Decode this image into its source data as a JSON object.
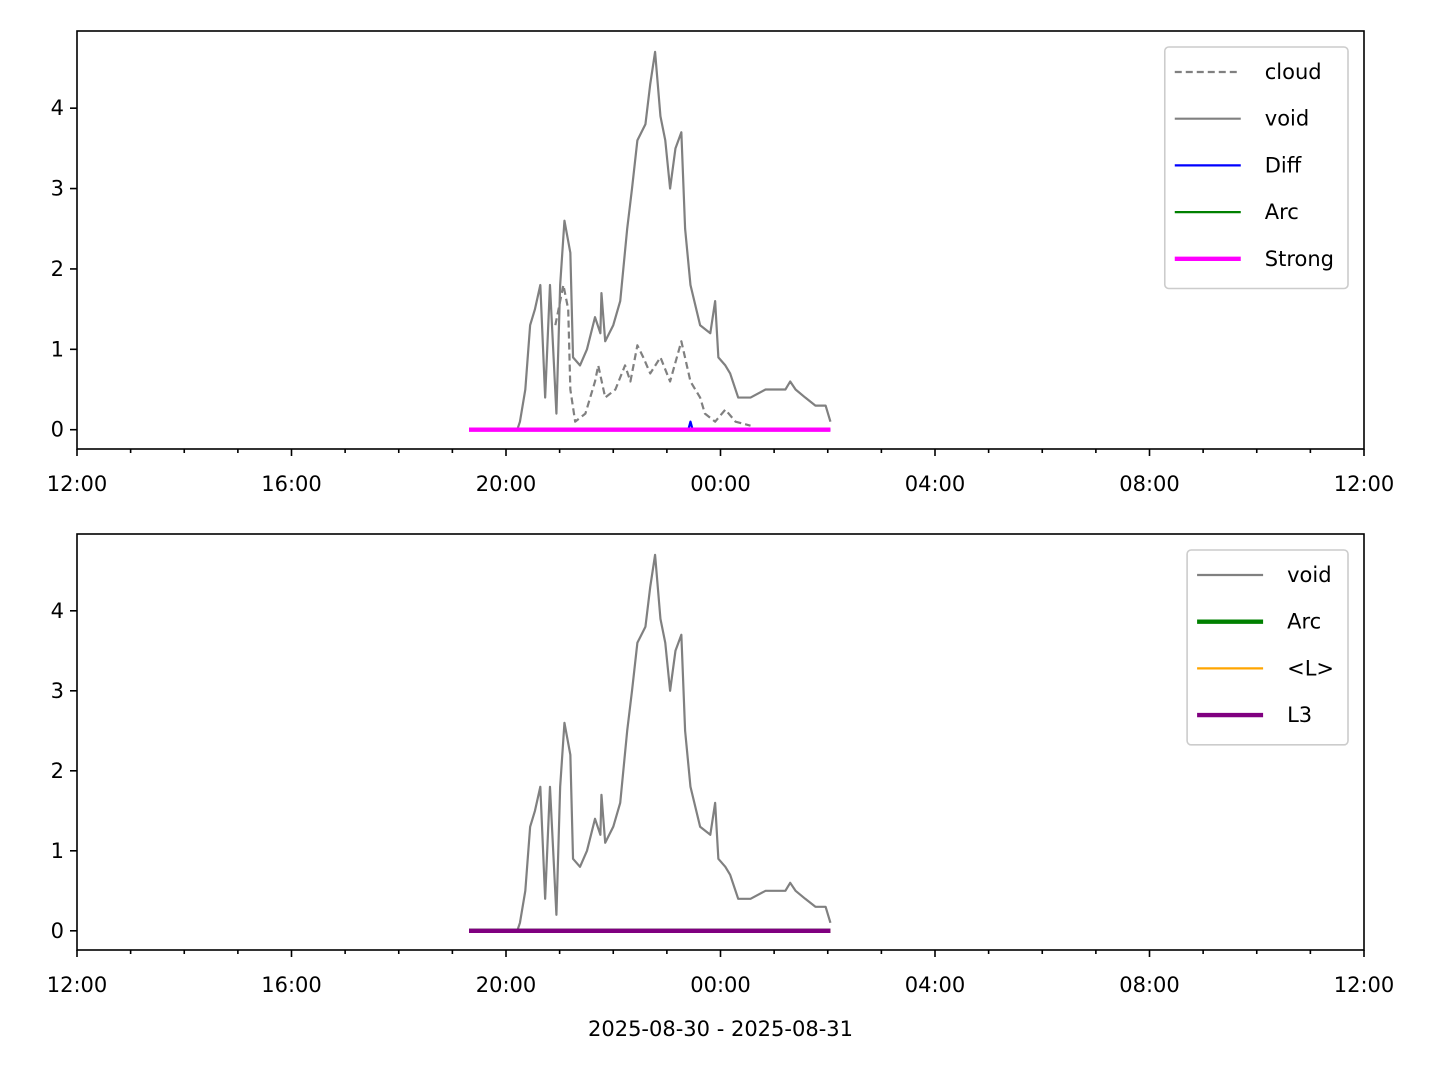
{
  "chart_data": [
    {
      "type": "line",
      "xlim": [
        12,
        36
      ],
      "ylim": [
        -0.24,
        4.96
      ],
      "xticks": [
        {
          "value": 12,
          "label": "12:00"
        },
        {
          "value": 16,
          "label": "16:00"
        },
        {
          "value": 20,
          "label": "20:00"
        },
        {
          "value": 24,
          "label": "00:00"
        },
        {
          "value": 28,
          "label": "04:00"
        },
        {
          "value": 32,
          "label": "08:00"
        },
        {
          "value": 36,
          "label": "12:00"
        }
      ],
      "xminorticks": [
        13,
        14,
        15,
        17,
        18,
        19,
        21,
        22,
        23,
        25,
        26,
        27,
        29,
        30,
        31,
        33,
        34,
        35
      ],
      "yticks": [
        0,
        1,
        2,
        3,
        4
      ],
      "legend": "upper right",
      "series": [
        {
          "name": "cloud",
          "color": "#808080",
          "style": "dashed",
          "linewidth": 1,
          "x": [
            20.92,
            21.07,
            21.16,
            21.2,
            21.29,
            21.48,
            21.66,
            21.72,
            21.85,
            22.04,
            22.22,
            22.32,
            22.45,
            22.56,
            22.69,
            22.88,
            23.06,
            23.27,
            23.44,
            23.62,
            23.71,
            23.9,
            24.09,
            24.28,
            24.56
          ],
          "values": [
            1.3,
            1.8,
            1.5,
            0.5,
            0.1,
            0.2,
            0.6,
            0.8,
            0.4,
            0.5,
            0.8,
            0.6,
            1.05,
            0.9,
            0.7,
            0.9,
            0.6,
            1.1,
            0.6,
            0.4,
            0.2,
            0.1,
            0.25,
            0.1,
            0.05
          ]
        },
        {
          "name": "void",
          "color": "#808080",
          "style": "solid",
          "linewidth": 1,
          "x": [
            19.31,
            20.21,
            20.26,
            20.36,
            20.45,
            20.54,
            20.64,
            20.73,
            20.82,
            20.94,
            21.01,
            21.09,
            21.2,
            21.25,
            21.38,
            21.51,
            21.66,
            21.76,
            21.78,
            21.85,
            22.0,
            22.13,
            22.26,
            22.35,
            22.45,
            22.6,
            22.69,
            22.78,
            22.88,
            22.97,
            23.06,
            23.16,
            23.27,
            23.34,
            23.44,
            23.62,
            23.81,
            23.9,
            23.96,
            24.09,
            24.18,
            24.33,
            24.56,
            24.84,
            25.21,
            25.3,
            25.4,
            25.58,
            25.77,
            25.96,
            26.05
          ],
          "values": [
            0,
            0,
            0.1,
            0.5,
            1.3,
            1.5,
            1.8,
            0.4,
            1.8,
            0.2,
            1.8,
            2.6,
            2.2,
            0.9,
            0.8,
            1.0,
            1.4,
            1.2,
            1.7,
            1.1,
            1.3,
            1.6,
            2.5,
            3.0,
            3.6,
            3.8,
            4.3,
            4.7,
            3.9,
            3.6,
            3.0,
            3.5,
            3.7,
            2.5,
            1.8,
            1.3,
            1.2,
            1.6,
            0.9,
            0.8,
            0.7,
            0.4,
            0.4,
            0.5,
            0.5,
            0.6,
            0.5,
            0.4,
            0.3,
            0.3,
            0.1
          ]
        },
        {
          "name": "Diff",
          "color": "#0000ff",
          "style": "solid",
          "linewidth": 1,
          "x": [
            19.31,
            23.4,
            23.44,
            23.48,
            26.05
          ],
          "values": [
            0,
            0,
            0.1,
            0,
            0
          ]
        },
        {
          "name": "Arc",
          "color": "#008000",
          "style": "solid",
          "linewidth": 1,
          "x": [
            19.31,
            26.05
          ],
          "values": [
            0,
            0
          ]
        },
        {
          "name": "Strong",
          "color": "#ff00ff",
          "style": "solid",
          "linewidth": 2,
          "x": [
            19.31,
            26.05
          ],
          "values": [
            0,
            0
          ]
        }
      ]
    },
    {
      "type": "line",
      "xlabel": "2025-08-30 - 2025-08-31",
      "xlim": [
        12,
        36
      ],
      "ylim": [
        -0.24,
        4.96
      ],
      "xticks": [
        {
          "value": 12,
          "label": "12:00"
        },
        {
          "value": 16,
          "label": "16:00"
        },
        {
          "value": 20,
          "label": "20:00"
        },
        {
          "value": 24,
          "label": "00:00"
        },
        {
          "value": 28,
          "label": "04:00"
        },
        {
          "value": 32,
          "label": "08:00"
        },
        {
          "value": 36,
          "label": "12:00"
        }
      ],
      "xminorticks": [
        13,
        14,
        15,
        17,
        18,
        19,
        21,
        22,
        23,
        25,
        26,
        27,
        29,
        30,
        31,
        33,
        34,
        35
      ],
      "yticks": [
        0,
        1,
        2,
        3,
        4
      ],
      "legend": "upper right",
      "series": [
        {
          "name": "void",
          "color": "#808080",
          "style": "solid",
          "linewidth": 1,
          "x": [
            19.31,
            20.21,
            20.26,
            20.36,
            20.45,
            20.54,
            20.64,
            20.73,
            20.82,
            20.94,
            21.01,
            21.09,
            21.2,
            21.25,
            21.38,
            21.51,
            21.66,
            21.76,
            21.78,
            21.85,
            22.0,
            22.13,
            22.26,
            22.35,
            22.45,
            22.6,
            22.69,
            22.78,
            22.88,
            22.97,
            23.06,
            23.16,
            23.27,
            23.34,
            23.44,
            23.62,
            23.81,
            23.9,
            23.96,
            24.09,
            24.18,
            24.33,
            24.56,
            24.84,
            25.21,
            25.3,
            25.4,
            25.58,
            25.77,
            25.96,
            26.05
          ],
          "values": [
            0,
            0,
            0.1,
            0.5,
            1.3,
            1.5,
            1.8,
            0.4,
            1.8,
            0.2,
            1.8,
            2.6,
            2.2,
            0.9,
            0.8,
            1.0,
            1.4,
            1.2,
            1.7,
            1.1,
            1.3,
            1.6,
            2.5,
            3.0,
            3.6,
            3.8,
            4.3,
            4.7,
            3.9,
            3.6,
            3.0,
            3.5,
            3.7,
            2.5,
            1.8,
            1.3,
            1.2,
            1.6,
            0.9,
            0.8,
            0.7,
            0.4,
            0.4,
            0.5,
            0.5,
            0.6,
            0.5,
            0.4,
            0.3,
            0.3,
            0.1
          ]
        },
        {
          "name": "Arc",
          "color": "#008000",
          "style": "solid",
          "linewidth": 2,
          "x": [
            19.31,
            26.05
          ],
          "values": [
            0,
            0
          ]
        },
        {
          "name": "<L>",
          "color": "#ffa500",
          "style": "solid",
          "linewidth": 1,
          "x": [
            19.31,
            26.05
          ],
          "values": [
            0,
            0
          ]
        },
        {
          "name": "L3",
          "color": "#800080",
          "style": "solid",
          "linewidth": 2,
          "x": [
            19.31,
            26.05
          ],
          "values": [
            0,
            0
          ]
        }
      ]
    }
  ]
}
